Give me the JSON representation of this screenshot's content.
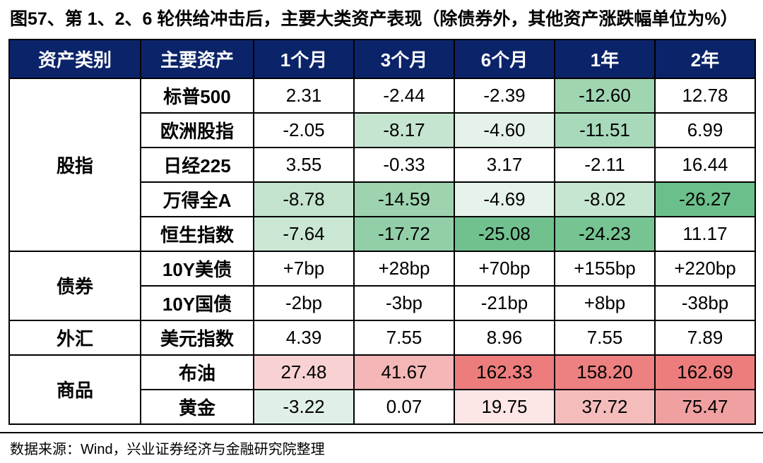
{
  "header": {
    "title": "图57、第 1、2、6 轮供给冲击后，主要大类资产表现（除债券外，其他资产涨跌幅单位为%）"
  },
  "footer": {
    "source": "数据来源：Wind，兴业证券经济与金融研究院整理"
  },
  "colors": {
    "header_bg": "#0b2369",
    "header_text": "#ffffff",
    "grid_line": "#000000",
    "strong_green": "#6bbf8a",
    "strong_red": "#ed7d7d"
  },
  "chart_data": {
    "type": "table",
    "columns": [
      "资产类别",
      "主要资产",
      "1个月",
      "3个月",
      "6个月",
      "1年",
      "2年"
    ],
    "groups": [
      {
        "category": "股指",
        "rows": [
          {
            "asset": "标普500",
            "values": [
              "2.31",
              "-2.44",
              "-2.39",
              "-12.60",
              "12.78"
            ],
            "bg": [
              "#ffffff",
              "#ffffff",
              "#ffffff",
              "#a0d5b2",
              "#ffffff"
            ]
          },
          {
            "asset": "欧洲股指",
            "values": [
              "-2.05",
              "-8.17",
              "-4.60",
              "-11.51",
              "6.99"
            ],
            "bg": [
              "#ffffff",
              "#c6e5d0",
              "#e5f2e9",
              "#a8d9ba",
              "#ffffff"
            ]
          },
          {
            "asset": "日经225",
            "values": [
              "3.55",
              "-0.33",
              "3.17",
              "-2.11",
              "16.44"
            ],
            "bg": [
              "#ffffff",
              "#ffffff",
              "#ffffff",
              "#ffffff",
              "#ffffff"
            ]
          },
          {
            "asset": "万得全A",
            "values": [
              "-8.78",
              "-14.59",
              "-4.69",
              "-8.02",
              "-26.27"
            ],
            "bg": [
              "#c3e3cd",
              "#9dd3af",
              "#e6f3ea",
              "#c7e6d1",
              "#6bbf8a"
            ]
          },
          {
            "asset": "恒生指数",
            "values": [
              "-7.64",
              "-17.72",
              "-25.08",
              "-24.23",
              "11.17"
            ],
            "bg": [
              "#c9e7d3",
              "#92cfa9",
              "#70c18e",
              "#76c492",
              "#ffffff"
            ]
          }
        ]
      },
      {
        "category": "债券",
        "rows": [
          {
            "asset": "10Y美债",
            "values": [
              "+7bp",
              "+28bp",
              "+70bp",
              "+155bp",
              "+220bp"
            ],
            "bg": [
              "#ffffff",
              "#ffffff",
              "#ffffff",
              "#ffffff",
              "#ffffff"
            ]
          },
          {
            "asset": "10Y国债",
            "values": [
              "-2bp",
              "-3bp",
              "-21bp",
              "+8bp",
              "-38bp"
            ],
            "bg": [
              "#ffffff",
              "#ffffff",
              "#ffffff",
              "#ffffff",
              "#ffffff"
            ]
          }
        ]
      },
      {
        "category": "外汇",
        "rows": [
          {
            "asset": "美元指数",
            "values": [
              "4.39",
              "7.55",
              "8.96",
              "7.55",
              "7.89"
            ],
            "bg": [
              "#ffffff",
              "#ffffff",
              "#ffffff",
              "#ffffff",
              "#ffffff"
            ]
          }
        ]
      },
      {
        "category": "商品",
        "rows": [
          {
            "asset": "布油",
            "values": [
              "27.48",
              "41.67",
              "162.33",
              "158.20",
              "162.69"
            ],
            "bg": [
              "#f8d2d2",
              "#f4b6b6",
              "#ed7d7d",
              "#ed8080",
              "#ed7d7d"
            ]
          },
          {
            "asset": "黄金",
            "values": [
              "-3.22",
              "0.07",
              "19.75",
              "37.72",
              "75.47"
            ],
            "bg": [
              "#e1f0e6",
              "#ffffff",
              "#fce6e6",
              "#f5bcbc",
              "#f0a0a0"
            ]
          }
        ]
      }
    ]
  }
}
